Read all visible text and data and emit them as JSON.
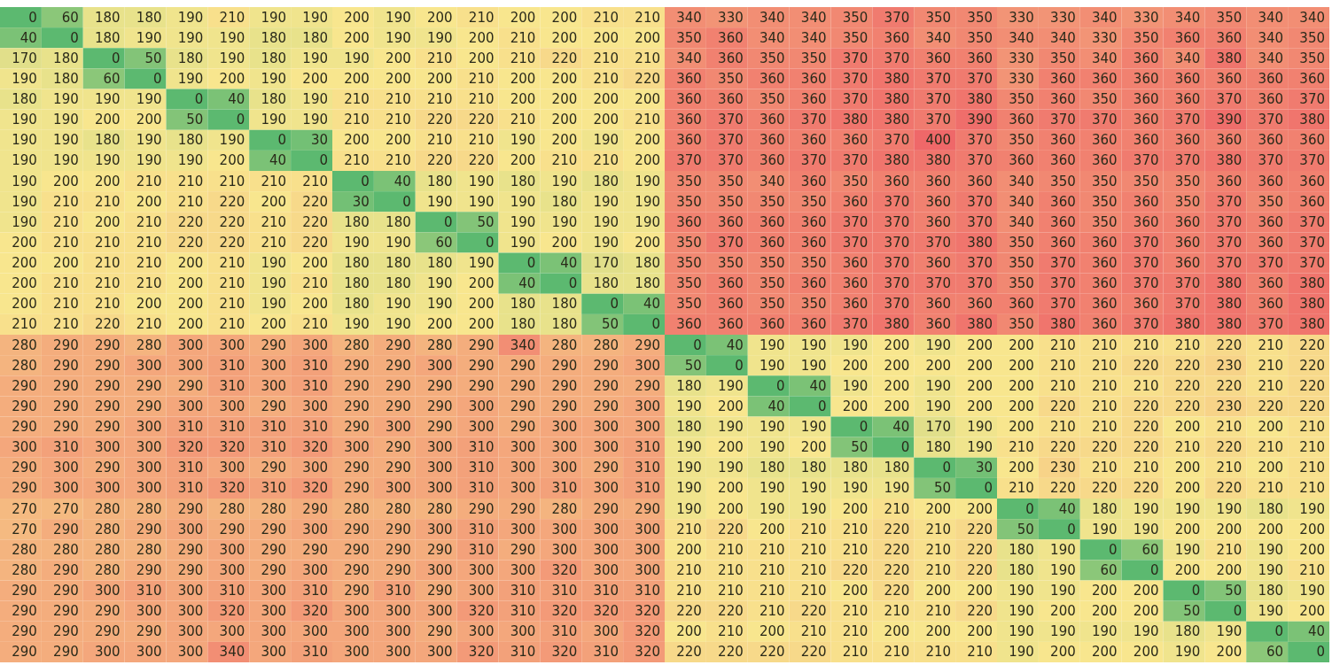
{
  "chart_data": {
    "type": "heatmap",
    "categories": [
      null,
      null,
      null,
      null,
      null,
      null,
      null,
      null,
      null,
      null,
      null,
      null,
      null,
      null,
      null,
      null,
      null,
      null,
      null,
      null,
      null,
      null,
      null,
      null,
      null,
      null,
      null,
      null,
      null,
      null,
      null,
      null
    ],
    "y_categories": [
      null,
      null,
      null,
      null,
      null,
      null,
      null,
      null,
      null,
      null,
      null,
      null,
      null,
      null,
      null,
      null,
      null,
      null,
      null,
      null,
      null,
      null,
      null,
      null,
      null,
      null,
      null,
      null,
      null,
      null,
      null,
      null
    ],
    "data_labels": true,
    "cells": [
      [
        0,
        60,
        180,
        180,
        190,
        210,
        190,
        190,
        200,
        190,
        200,
        210,
        200,
        200,
        210,
        210,
        340,
        330,
        340,
        340,
        350,
        370,
        350,
        350,
        330,
        330,
        340,
        330,
        340,
        350,
        340,
        340
      ],
      [
        40,
        0,
        180,
        190,
        190,
        190,
        180,
        180,
        200,
        190,
        190,
        200,
        210,
        200,
        200,
        200,
        350,
        360,
        340,
        340,
        350,
        360,
        340,
        350,
        340,
        340,
        330,
        350,
        360,
        360,
        340,
        350
      ],
      [
        170,
        180,
        0,
        50,
        180,
        190,
        180,
        190,
        190,
        200,
        210,
        200,
        210,
        220,
        210,
        210,
        340,
        360,
        350,
        350,
        370,
        370,
        360,
        360,
        330,
        350,
        340,
        360,
        340,
        380,
        340,
        350
      ],
      [
        190,
        180,
        60,
        0,
        190,
        200,
        190,
        200,
        200,
        200,
        200,
        210,
        200,
        200,
        210,
        220,
        360,
        350,
        360,
        360,
        370,
        380,
        370,
        370,
        330,
        360,
        360,
        360,
        360,
        360,
        360,
        360
      ],
      [
        180,
        190,
        190,
        190,
        0,
        40,
        180,
        190,
        210,
        210,
        210,
        210,
        200,
        200,
        200,
        200,
        360,
        360,
        350,
        360,
        370,
        380,
        370,
        380,
        350,
        360,
        350,
        360,
        360,
        370,
        360,
        370
      ],
      [
        190,
        190,
        200,
        200,
        50,
        0,
        190,
        190,
        210,
        210,
        220,
        220,
        210,
        200,
        200,
        210,
        360,
        370,
        360,
        370,
        380,
        380,
        370,
        390,
        360,
        370,
        370,
        360,
        370,
        390,
        370,
        380
      ],
      [
        190,
        190,
        180,
        190,
        180,
        190,
        0,
        30,
        200,
        200,
        210,
        210,
        190,
        200,
        190,
        200,
        360,
        370,
        360,
        360,
        360,
        370,
        400,
        370,
        350,
        360,
        360,
        360,
        360,
        360,
        360,
        360
      ],
      [
        190,
        190,
        190,
        190,
        190,
        200,
        40,
        0,
        210,
        210,
        220,
        220,
        200,
        210,
        210,
        200,
        370,
        370,
        360,
        370,
        370,
        380,
        380,
        370,
        360,
        360,
        360,
        370,
        370,
        380,
        370,
        370
      ],
      [
        190,
        200,
        200,
        210,
        210,
        210,
        210,
        210,
        0,
        40,
        180,
        190,
        180,
        190,
        180,
        190,
        350,
        350,
        340,
        360,
        350,
        360,
        360,
        360,
        340,
        350,
        350,
        350,
        350,
        360,
        360,
        360
      ],
      [
        190,
        210,
        210,
        200,
        210,
        220,
        200,
        220,
        30,
        0,
        190,
        190,
        190,
        180,
        190,
        190,
        350,
        350,
        350,
        350,
        360,
        370,
        360,
        370,
        340,
        360,
        350,
        360,
        350,
        370,
        350,
        360
      ],
      [
        190,
        210,
        200,
        210,
        220,
        220,
        210,
        220,
        180,
        180,
        0,
        50,
        190,
        190,
        190,
        190,
        360,
        360,
        360,
        360,
        370,
        370,
        360,
        370,
        340,
        360,
        350,
        360,
        360,
        370,
        360,
        370
      ],
      [
        200,
        210,
        210,
        210,
        220,
        220,
        210,
        220,
        190,
        190,
        60,
        0,
        190,
        200,
        190,
        200,
        350,
        370,
        360,
        360,
        370,
        370,
        370,
        380,
        350,
        360,
        360,
        370,
        360,
        370,
        360,
        370
      ],
      [
        200,
        200,
        210,
        210,
        200,
        210,
        190,
        200,
        180,
        180,
        180,
        190,
        0,
        40,
        170,
        180,
        350,
        350,
        350,
        350,
        360,
        370,
        360,
        370,
        350,
        370,
        360,
        370,
        360,
        370,
        370,
        370
      ],
      [
        200,
        210,
        210,
        210,
        200,
        210,
        190,
        210,
        180,
        180,
        190,
        200,
        40,
        0,
        180,
        180,
        350,
        360,
        350,
        360,
        360,
        370,
        370,
        370,
        350,
        370,
        360,
        370,
        370,
        380,
        360,
        380
      ],
      [
        200,
        210,
        210,
        200,
        200,
        210,
        190,
        200,
        180,
        190,
        190,
        200,
        180,
        180,
        0,
        40,
        350,
        360,
        350,
        350,
        360,
        370,
        360,
        360,
        360,
        370,
        360,
        360,
        370,
        380,
        360,
        380
      ],
      [
        210,
        210,
        220,
        210,
        200,
        210,
        200,
        210,
        190,
        190,
        200,
        200,
        180,
        180,
        50,
        0,
        360,
        360,
        360,
        360,
        370,
        380,
        360,
        380,
        350,
        380,
        360,
        370,
        380,
        380,
        370,
        380
      ],
      [
        280,
        290,
        290,
        280,
        300,
        300,
        290,
        300,
        280,
        290,
        280,
        290,
        340,
        280,
        280,
        290,
        0,
        40,
        190,
        190,
        190,
        200,
        190,
        200,
        200,
        210,
        210,
        210,
        210,
        220,
        210,
        220
      ],
      [
        280,
        290,
        290,
        300,
        300,
        310,
        300,
        310,
        290,
        290,
        300,
        290,
        290,
        290,
        290,
        300,
        50,
        0,
        190,
        190,
        200,
        200,
        200,
        200,
        200,
        210,
        210,
        220,
        220,
        230,
        210,
        220
      ],
      [
        290,
        290,
        290,
        290,
        290,
        310,
        300,
        310,
        290,
        290,
        290,
        290,
        290,
        290,
        290,
        290,
        180,
        190,
        0,
        40,
        190,
        200,
        190,
        200,
        200,
        210,
        210,
        210,
        220,
        220,
        210,
        220
      ],
      [
        290,
        290,
        290,
        290,
        300,
        300,
        290,
        300,
        290,
        290,
        290,
        300,
        290,
        290,
        290,
        300,
        190,
        200,
        40,
        0,
        200,
        200,
        190,
        200,
        200,
        220,
        210,
        220,
        220,
        230,
        220,
        220
      ],
      [
        290,
        290,
        290,
        300,
        310,
        310,
        310,
        310,
        290,
        300,
        290,
        300,
        290,
        300,
        300,
        300,
        180,
        190,
        190,
        190,
        0,
        40,
        170,
        190,
        200,
        210,
        210,
        220,
        200,
        210,
        200,
        210
      ],
      [
        300,
        310,
        300,
        300,
        320,
        320,
        310,
        320,
        300,
        290,
        300,
        310,
        300,
        300,
        300,
        310,
        190,
        200,
        190,
        200,
        50,
        0,
        180,
        190,
        210,
        220,
        220,
        220,
        210,
        220,
        210,
        210
      ],
      [
        290,
        300,
        290,
        300,
        310,
        300,
        290,
        300,
        290,
        290,
        300,
        310,
        300,
        300,
        290,
        310,
        190,
        190,
        180,
        180,
        180,
        180,
        0,
        30,
        200,
        230,
        210,
        210,
        200,
        210,
        200,
        210
      ],
      [
        290,
        300,
        300,
        300,
        310,
        320,
        310,
        320,
        290,
        300,
        300,
        310,
        300,
        310,
        300,
        310,
        190,
        200,
        190,
        190,
        190,
        190,
        50,
        0,
        210,
        220,
        220,
        220,
        200,
        220,
        210,
        210
      ],
      [
        270,
        270,
        280,
        280,
        290,
        280,
        280,
        290,
        280,
        280,
        280,
        290,
        290,
        280,
        290,
        290,
        190,
        200,
        190,
        190,
        200,
        210,
        200,
        200,
        0,
        40,
        180,
        190,
        190,
        190,
        180,
        190
      ],
      [
        270,
        290,
        280,
        290,
        300,
        290,
        290,
        300,
        290,
        290,
        300,
        310,
        300,
        300,
        300,
        300,
        210,
        220,
        200,
        210,
        210,
        220,
        210,
        220,
        50,
        0,
        190,
        190,
        200,
        200,
        200,
        200
      ],
      [
        280,
        280,
        280,
        280,
        290,
        300,
        290,
        290,
        290,
        290,
        290,
        310,
        290,
        300,
        300,
        300,
        200,
        210,
        210,
        210,
        210,
        220,
        210,
        220,
        180,
        190,
        0,
        60,
        190,
        210,
        190,
        200
      ],
      [
        280,
        290,
        280,
        290,
        290,
        300,
        290,
        300,
        290,
        290,
        300,
        300,
        300,
        320,
        300,
        300,
        210,
        210,
        210,
        210,
        220,
        220,
        210,
        220,
        180,
        190,
        60,
        0,
        200,
        200,
        190,
        210
      ],
      [
        290,
        290,
        300,
        310,
        300,
        310,
        300,
        310,
        290,
        310,
        290,
        300,
        310,
        310,
        310,
        310,
        210,
        210,
        210,
        210,
        200,
        220,
        200,
        200,
        190,
        190,
        200,
        200,
        0,
        50,
        180,
        190
      ],
      [
        290,
        290,
        290,
        300,
        300,
        320,
        300,
        320,
        300,
        300,
        300,
        320,
        310,
        320,
        320,
        320,
        220,
        220,
        210,
        220,
        210,
        210,
        210,
        220,
        190,
        200,
        200,
        200,
        50,
        0,
        190,
        200
      ],
      [
        290,
        290,
        290,
        290,
        300,
        300,
        300,
        300,
        300,
        300,
        290,
        300,
        300,
        310,
        300,
        320,
        200,
        210,
        200,
        210,
        210,
        200,
        200,
        200,
        190,
        190,
        190,
        190,
        180,
        190,
        0,
        40
      ],
      [
        290,
        290,
        300,
        300,
        300,
        340,
        300,
        310,
        300,
        300,
        300,
        320,
        310,
        320,
        310,
        320,
        220,
        220,
        220,
        220,
        210,
        210,
        210,
        210,
        190,
        200,
        200,
        200,
        190,
        200,
        60,
        0
      ]
    ]
  }
}
